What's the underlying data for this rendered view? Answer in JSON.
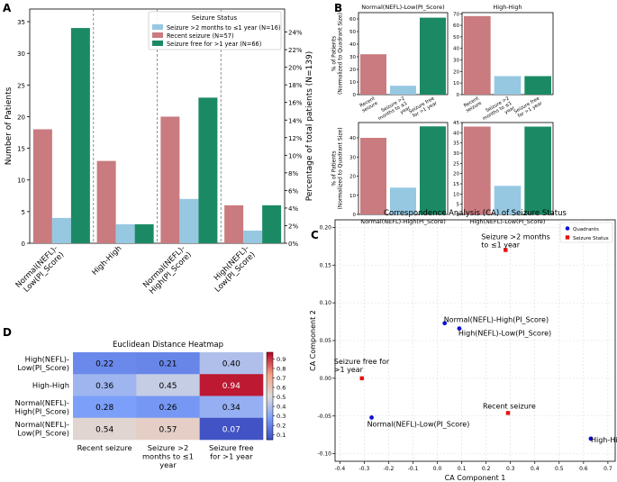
{
  "panel_letters": {
    "a": "A",
    "b": "B",
    "c": "C",
    "d": "D"
  },
  "colors": {
    "recent": "#c97b7f",
    "months": "#96c8e2",
    "free": "#1b8a64",
    "quadrant_point": "#1010d8",
    "status_point": "#e81010"
  },
  "chart_data": [
    {
      "id": "A",
      "type": "bar",
      "categories": [
        "Normal(NEFL)-\nLow(PI_Score)",
        "High-High",
        "Normal(NEFL)-\nHigh(PI_Score)",
        "High(NEFL)-\nLow(PI_Score)"
      ],
      "series": [
        {
          "name": "Recent seizure (N=57)",
          "key": "recent",
          "values": [
            18,
            13,
            20,
            6
          ]
        },
        {
          "name": "Seizure >2 months to ≤1 year (N=16)",
          "key": "months",
          "values": [
            4,
            3,
            7,
            2
          ]
        },
        {
          "name": "Seizure free for >1 year (N=66)",
          "key": "free",
          "values": [
            34,
            3,
            23,
            6
          ]
        }
      ],
      "legend_title": "Seizure Status",
      "legend_entries": [
        "Seizure >2 months to ≤1 year (N=16)",
        "Recent seizure (N=57)",
        "Seizure free for >1 year (N=66)"
      ],
      "ylabel": "Number of Patients",
      "y2label": "Percentage of total patients (N=139)",
      "ylim": [
        0,
        37
      ],
      "yticks": [
        0,
        5,
        10,
        15,
        20,
        25,
        30,
        35
      ],
      "y2ticks": [
        "0%",
        "2%",
        "4%",
        "6%",
        "8%",
        "10%",
        "12%",
        "14%",
        "16%",
        "18%",
        "20%",
        "22%",
        "24%"
      ],
      "y2values": [
        0,
        2,
        4,
        6,
        8,
        10,
        12,
        14,
        16,
        18,
        20,
        22,
        24
      ],
      "total": 139
    },
    {
      "id": "B",
      "type": "bar",
      "ylabel": "% of Patients\n(Normalized to Quadrant Size)",
      "categories": [
        "Recent\nseizure",
        "Seizure >2\nmonths to ≤1\nyear",
        "Seizure free\nfor >1 year"
      ],
      "subplots": [
        {
          "title": "Normal(NEFL)-Low(PI_Score)",
          "values": [
            32,
            7,
            61
          ],
          "ylim": [
            0,
            65
          ],
          "yticks": [
            0,
            10,
            20,
            30,
            40,
            50,
            60
          ],
          "show_xlabels": true
        },
        {
          "title": "High-High",
          "values": [
            68,
            16,
            16
          ],
          "ylim": [
            0,
            71
          ],
          "yticks": [
            0,
            10,
            20,
            30,
            40,
            50,
            60,
            70
          ],
          "show_xlabels": true
        },
        {
          "title": "Normal(NEFL)-High(PI_Score)",
          "values": [
            40,
            14,
            46
          ],
          "ylim": [
            0,
            48
          ],
          "yticks": [
            0,
            10,
            20,
            30,
            40
          ],
          "show_xlabels": false
        },
        {
          "title": "High(NEFL)-Low(PI_Score)",
          "values": [
            43,
            14,
            43
          ],
          "ylim": [
            0,
            45
          ],
          "yticks": [
            0,
            5,
            10,
            15,
            20,
            25,
            30,
            35,
            40,
            45
          ],
          "show_xlabels": false
        }
      ]
    },
    {
      "id": "C",
      "type": "scatter",
      "title": "Correspondence Analysis (CA) of Seizure Status",
      "xlabel": "CA Component 1",
      "ylabel": "CA Component 2",
      "xlim": [
        -0.42,
        0.73
      ],
      "ylim": [
        -0.11,
        0.21
      ],
      "xticks": [
        -0.4,
        -0.3,
        -0.2,
        -0.1,
        0.0,
        0.1,
        0.2,
        0.3,
        0.4,
        0.5,
        0.6,
        0.7
      ],
      "yticks": [
        -0.1,
        -0.05,
        0.0,
        0.05,
        0.1,
        0.15,
        0.2
      ],
      "legend_entries": [
        "Quadrants",
        "Seizure Status"
      ],
      "quadrants": [
        {
          "label": "Normal(NEFL)-High(PI_Score)",
          "x": 0.03,
          "y": 0.073
        },
        {
          "label": "High(NEFL)-Low(PI_Score)",
          "x": 0.09,
          "y": 0.066
        },
        {
          "label": "Normal(NEFL)-Low(PI_Score)",
          "x": -0.27,
          "y": -0.052
        },
        {
          "label": "High-High",
          "x": 0.63,
          "y": -0.08
        }
      ],
      "status": [
        {
          "label": "Seizure >2 months\nto ≤1 year",
          "x": 0.28,
          "y": 0.17
        },
        {
          "label": "Seizure free for\n>1 year",
          "x": -0.31,
          "y": 0.0
        },
        {
          "label": "Recent seizure",
          "x": 0.29,
          "y": -0.046
        }
      ],
      "grid": true
    },
    {
      "id": "D",
      "type": "heatmap",
      "title": "Euclidean Distance Heatmap",
      "rows": [
        "High(NEFL)-\nLow(PI_Score)",
        "High-High",
        "Normal(NEFL)-\nHigh(PI_Score)",
        "Normal(NEFL)-\nLow(PI_Score)"
      ],
      "cols": [
        "Recent seizure",
        "Seizure >2\nmonths to ≤1\nyear",
        "Seizure free\nfor >1 year"
      ],
      "values": [
        [
          0.22,
          0.21,
          0.4
        ],
        [
          0.36,
          0.45,
          0.94
        ],
        [
          0.28,
          0.26,
          0.34
        ],
        [
          0.54,
          0.57,
          0.07
        ]
      ],
      "vmin": 0.05,
      "vmax": 0.97,
      "colorbar_ticks": [
        0.1,
        0.2,
        0.3,
        0.4,
        0.5,
        0.6,
        0.7,
        0.8,
        0.9
      ]
    }
  ]
}
